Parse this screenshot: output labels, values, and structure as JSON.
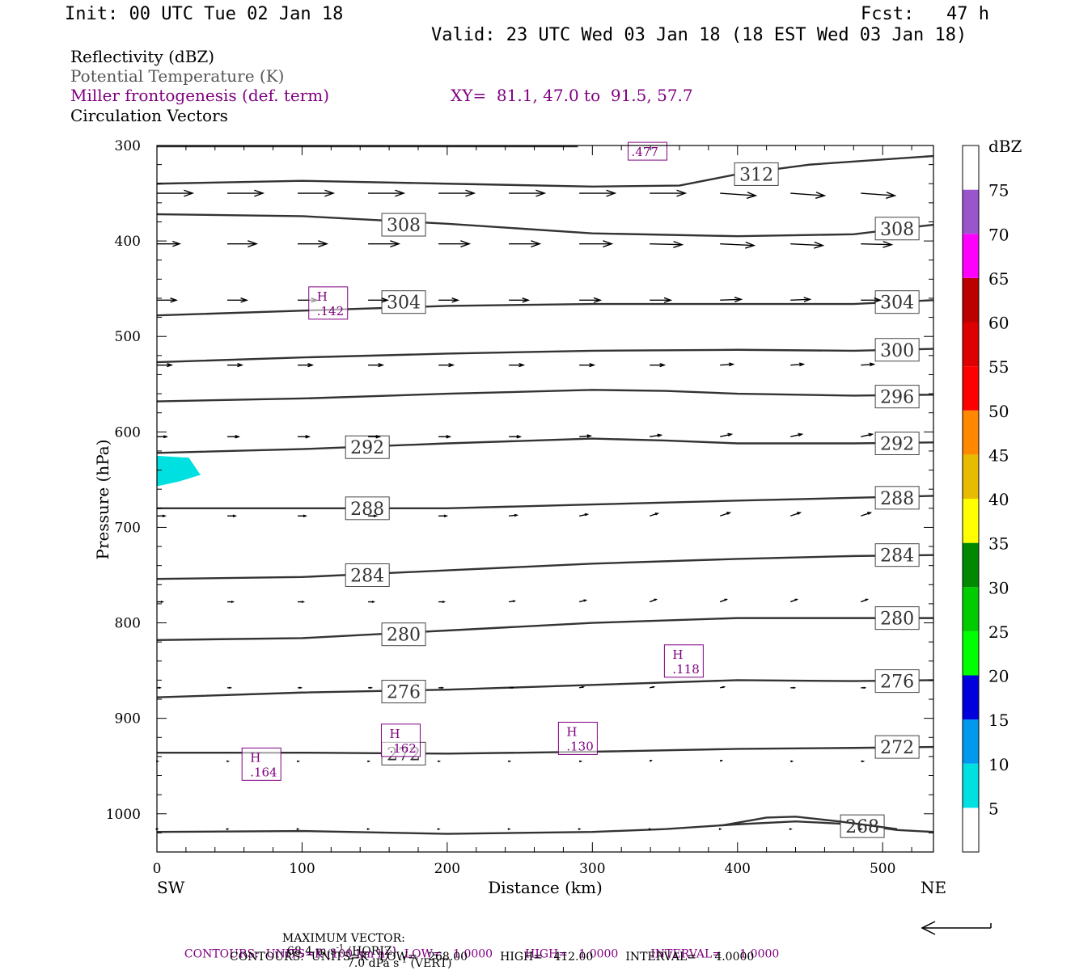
{
  "header": {
    "init": "Init: 00 UTC Tue 02 Jan 18",
    "fcst": "Fcst:   47 h",
    "valid": "Valid: 23 UTC Wed 03 Jan 18 (18 EST Wed 03 Jan 18)"
  },
  "legend": {
    "reflectivity": "Reflectivity (dBZ)",
    "theta": "Potential Temperature (K)",
    "miller": "Miller frontogenesis (def. term)",
    "xy": "XY=  81.1, 47.0 to  91.5, 57.7",
    "circulation": "Circulation Vectors"
  },
  "colors": {
    "theta_line": "#333333",
    "frontogenesis": "#800080",
    "refl_cyan": "#00e0e0"
  },
  "chart_data": {
    "type": "cross-section",
    "xlabel": "Distance (km)",
    "ylabel": "Pressure (hPa)",
    "xlim": [
      0,
      535
    ],
    "ylim": [
      1040,
      300
    ],
    "x_ticks": [
      0,
      100,
      200,
      300,
      400,
      500
    ],
    "y_ticks": [
      300,
      400,
      500,
      600,
      700,
      800,
      900,
      1000
    ],
    "x_end_labels": {
      "left": "SW",
      "right": "NE"
    },
    "theta_contours": [
      {
        "label": "312",
        "points": [
          [
            0,
            340
          ],
          [
            100,
            337
          ],
          [
            200,
            340
          ],
          [
            300,
            343
          ],
          [
            360,
            342
          ],
          [
            400,
            330
          ],
          [
            450,
            320
          ],
          [
            535,
            311
          ]
        ],
        "labels_at": [
          [
            413,
            330
          ]
        ]
      },
      {
        "label": "308",
        "points": [
          [
            0,
            372
          ],
          [
            100,
            374
          ],
          [
            200,
            382
          ],
          [
            300,
            392
          ],
          [
            400,
            395
          ],
          [
            480,
            393
          ],
          [
            535,
            383
          ]
        ],
        "labels_at": [
          [
            170,
            383
          ],
          [
            510,
            387
          ]
        ]
      },
      {
        "label": "304",
        "points": [
          [
            0,
            478
          ],
          [
            100,
            473
          ],
          [
            200,
            468
          ],
          [
            300,
            466
          ],
          [
            400,
            466
          ],
          [
            480,
            466
          ],
          [
            535,
            462
          ]
        ],
        "labels_at": [
          [
            170,
            464
          ],
          [
            510,
            464
          ]
        ]
      },
      {
        "label": "300",
        "points": [
          [
            0,
            527
          ],
          [
            100,
            522
          ],
          [
            200,
            518
          ],
          [
            300,
            515
          ],
          [
            400,
            514
          ],
          [
            480,
            515
          ],
          [
            535,
            513
          ]
        ],
        "labels_at": [
          [
            510,
            514
          ]
        ]
      },
      {
        "label": "296",
        "points": [
          [
            0,
            568
          ],
          [
            100,
            565
          ],
          [
            200,
            560
          ],
          [
            300,
            556
          ],
          [
            350,
            557
          ],
          [
            400,
            560
          ],
          [
            480,
            562
          ],
          [
            535,
            561
          ]
        ],
        "labels_at": [
          [
            510,
            563
          ]
        ]
      },
      {
        "label": "292",
        "points": [
          [
            0,
            622
          ],
          [
            100,
            618
          ],
          [
            200,
            612
          ],
          [
            300,
            607
          ],
          [
            350,
            609
          ],
          [
            400,
            612
          ],
          [
            480,
            612
          ],
          [
            535,
            611
          ]
        ],
        "labels_at": [
          [
            145,
            616
          ],
          [
            510,
            612
          ]
        ]
      },
      {
        "label": "288",
        "points": [
          [
            0,
            680
          ],
          [
            100,
            680
          ],
          [
            200,
            680
          ],
          [
            300,
            676
          ],
          [
            400,
            672
          ],
          [
            480,
            669
          ],
          [
            535,
            667
          ]
        ],
        "labels_at": [
          [
            145,
            680
          ],
          [
            510,
            669
          ]
        ]
      },
      {
        "label": "284",
        "points": [
          [
            0,
            754
          ],
          [
            100,
            752
          ],
          [
            200,
            745
          ],
          [
            300,
            738
          ],
          [
            400,
            733
          ],
          [
            480,
            730
          ],
          [
            535,
            729
          ]
        ],
        "labels_at": [
          [
            145,
            750
          ],
          [
            510,
            729
          ]
        ]
      },
      {
        "label": "280",
        "points": [
          [
            0,
            818
          ],
          [
            100,
            816
          ],
          [
            200,
            808
          ],
          [
            300,
            800
          ],
          [
            400,
            795
          ],
          [
            480,
            795
          ],
          [
            535,
            795
          ]
        ],
        "labels_at": [
          [
            170,
            812
          ],
          [
            510,
            795
          ]
        ]
      },
      {
        "label": "276",
        "points": [
          [
            0,
            878
          ],
          [
            100,
            873
          ],
          [
            200,
            870
          ],
          [
            300,
            865
          ],
          [
            400,
            860
          ],
          [
            480,
            861
          ],
          [
            535,
            860
          ]
        ],
        "labels_at": [
          [
            170,
            872
          ],
          [
            510,
            861
          ]
        ]
      },
      {
        "label": "272",
        "points": [
          [
            0,
            936
          ],
          [
            100,
            936
          ],
          [
            200,
            937
          ],
          [
            300,
            935
          ],
          [
            400,
            932
          ],
          [
            480,
            931
          ],
          [
            535,
            930
          ]
        ],
        "labels_at": [
          [
            170,
            937
          ],
          [
            510,
            930
          ]
        ]
      },
      {
        "label": "268",
        "points": [
          [
            0,
            1019
          ],
          [
            100,
            1018
          ],
          [
            200,
            1021
          ],
          [
            300,
            1019
          ],
          [
            350,
            1016
          ],
          [
            400,
            1011
          ],
          [
            440,
            1008
          ],
          [
            480,
            1011
          ],
          [
            510,
            1017
          ],
          [
            535,
            1019
          ]
        ],
        "labels_at": [
          [
            486,
            1013
          ]
        ]
      }
    ],
    "theta_extra_segments": [
      {
        "points": [
          [
            390,
            1012
          ],
          [
            420,
            1004
          ],
          [
            440,
            1003
          ],
          [
            470,
            1008
          ],
          [
            490,
            1012
          ],
          [
            510,
            1016
          ]
        ]
      }
    ],
    "frontogenesis_maxima": [
      {
        "marker": "H",
        "value": ".142",
        "x": 118,
        "p": 465
      },
      {
        "marker": "H",
        "value": ".118",
        "x": 363,
        "p": 840
      },
      {
        "marker": "H",
        "value": ".162",
        "x": 168,
        "p": 923
      },
      {
        "marker": "H",
        "value": ".130",
        "x": 290,
        "p": 921
      },
      {
        "marker": "H",
        "value": ".164",
        "x": 72,
        "p": 948
      },
      {
        "marker": "",
        "value": ".477",
        "x": 338,
        "p": 306
      }
    ],
    "reflectivity_areas": [
      {
        "dbz_range": [
          5,
          10
        ],
        "points": [
          [
            0,
            625
          ],
          [
            22,
            627
          ],
          [
            30,
            645
          ],
          [
            15,
            652
          ],
          [
            0,
            657
          ]
        ]
      }
    ],
    "circulation_vectors": {
      "x": [
        0,
        48.5,
        97,
        145.5,
        194,
        242.5,
        291,
        339.5,
        388,
        436.5,
        485
      ],
      "rows": [
        {
          "p": 350,
          "u": [
            44,
            44,
            44,
            44,
            44,
            44,
            44,
            44,
            44,
            42,
            42
          ],
          "dp": [
            0,
            0,
            0,
            0,
            0,
            0,
            0,
            0,
            3,
            3,
            3
          ]
        },
        {
          "p": 403,
          "u": [
            28,
            36,
            36,
            38,
            38,
            38,
            40,
            40,
            42,
            40,
            38
          ],
          "dp": [
            0,
            0,
            0,
            0,
            0,
            0,
            0,
            1,
            2,
            2,
            1
          ]
        },
        {
          "p": 462,
          "u": [
            24,
            24,
            24,
            24,
            24,
            24,
            26,
            26,
            26,
            24,
            24
          ],
          "dp": [
            0,
            0,
            0,
            0,
            0,
            0,
            0,
            0,
            -1,
            -1,
            0
          ]
        },
        {
          "p": 530,
          "u": [
            18,
            18,
            18,
            18,
            18,
            18,
            18,
            18,
            16,
            16,
            16
          ],
          "dp": [
            0,
            0,
            0,
            0,
            0,
            0,
            0,
            0,
            -1,
            -1,
            -1
          ]
        },
        {
          "p": 605,
          "u": [
            12,
            14,
            14,
            14,
            14,
            14,
            14,
            14,
            14,
            14,
            14
          ],
          "dp": [
            0,
            0,
            0,
            0,
            0,
            0,
            -1,
            -2,
            -3,
            -3,
            -3
          ]
        },
        {
          "p": 688,
          "u": [
            10,
            10,
            10,
            10,
            10,
            10,
            10,
            10,
            12,
            12,
            12
          ],
          "dp": [
            0,
            0,
            0,
            0,
            0,
            -1,
            -2,
            -3,
            -4,
            -4,
            -4
          ]
        },
        {
          "p": 778,
          "u": [
            7,
            7,
            7,
            7,
            7,
            7,
            8,
            8,
            8,
            8,
            8
          ],
          "dp": [
            0,
            0,
            0,
            0,
            0,
            -1,
            -2,
            -3,
            -3,
            -3,
            -3
          ]
        },
        {
          "p": 868,
          "u": [
            4,
            4,
            4,
            4,
            5,
            5,
            5,
            5,
            5,
            5,
            5
          ],
          "dp": [
            0,
            0,
            0,
            0,
            0,
            0,
            -1,
            -1,
            -1,
            0,
            0
          ]
        },
        {
          "p": 945,
          "u": [
            1,
            1,
            1,
            1,
            1,
            1,
            2,
            2,
            2,
            2,
            3
          ],
          "dp": [
            0,
            0,
            0,
            0,
            0,
            0,
            0,
            -1,
            -1,
            0,
            0
          ]
        },
        {
          "p": 1016,
          "u": [
            0.5,
            0.5,
            0.5,
            0.5,
            0.5,
            0.5,
            0.5,
            0.5,
            0.5,
            0.5,
            0.5
          ],
          "dp": [
            0,
            0,
            0,
            0,
            0,
            0,
            0,
            0,
            0,
            0,
            0
          ]
        }
      ]
    },
    "colorbar": {
      "unit": "dBZ",
      "levels": [
        5,
        10,
        15,
        20,
        25,
        30,
        35,
        40,
        45,
        50,
        55,
        60,
        65,
        70,
        75
      ],
      "colors": [
        "#ffffff",
        "#00e0e0",
        "#0099ee",
        "#0000dd",
        "#00ff00",
        "#00cc00",
        "#008800",
        "#ffff00",
        "#e6bb00",
        "#ff8800",
        "#ff0000",
        "#dd0000",
        "#bb0000",
        "#ff00ff",
        "#9955cc",
        "#ffffff"
      ]
    }
  },
  "footer": {
    "max_vector_label": "MAXIMUM VECTOR:",
    "max_vector_horiz": "68.4 m s",
    "max_vector_horiz_exp": "-1",
    "max_vector_horiz_tail": " (HORIZ)",
    "max_vector_vert": "7.0 dPa s",
    "max_vector_vert_exp": "-1",
    "max_vector_vert_tail": " (VERT)",
    "contours_purple": "CONTOURS:  UNITS=K (100 km h)",
    "contours_purple_exp": "-1",
    "contours_purple_tail": "  LOW=   1.0000         HIGH=   1.0000         INTERVAL=     1.0000",
    "contours_black": "CONTOURS:  UNITS=K   LOW=   268.00         HIGH=   412.00         INTERVAL=     4.0000"
  }
}
